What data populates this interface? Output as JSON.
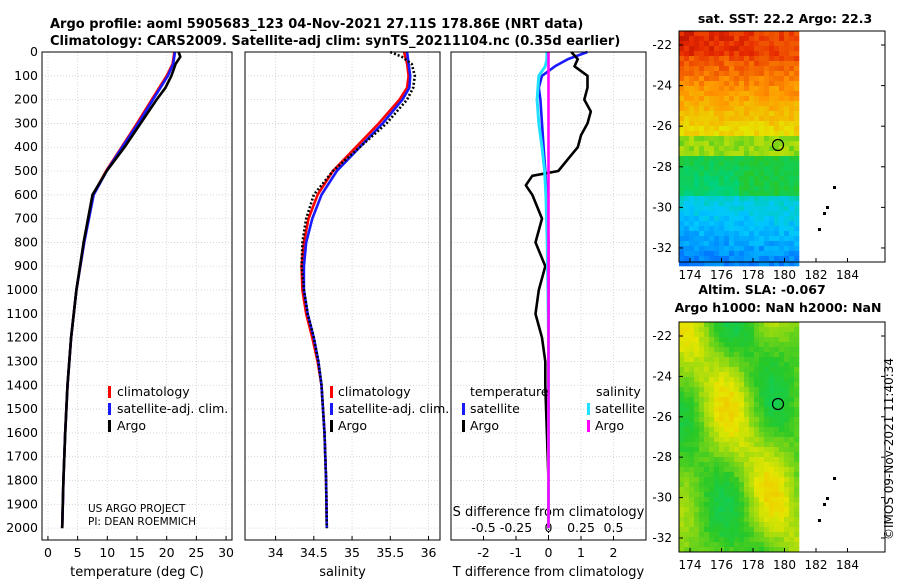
{
  "header": {
    "line1": "Argo profile: aoml 5905683_123 04-Nov-2021 27.11S 178.86E (NRT data)",
    "line2": "Climatology: CARS2009. Satellite-adj clim: synTS_20211104.nc (0.35d earlier)"
  },
  "watermark": "©IMOS 09-Nov-2021 11:40:34",
  "colors": {
    "climatology": "#ff0000",
    "satellite": "#1a1aff",
    "argo": "#000000",
    "sat_salinity": "#22e0ff",
    "argo_salinity": "#ff00ff"
  },
  "depth_ticks": [
    "0",
    "100",
    "200",
    "300",
    "400",
    "500",
    "600",
    "700",
    "800",
    "900",
    "1000",
    "1100",
    "1200",
    "1300",
    "1400",
    "1500",
    "1600",
    "1700",
    "1800",
    "1900",
    "2000"
  ],
  "project": {
    "line1": "US ARGO PROJECT",
    "line2": "PI: DEAN ROEMMICH"
  },
  "legend": {
    "clim": "climatology",
    "sat": "satellite-adj. clim.",
    "argo": "Argo"
  },
  "legend_diff": {
    "temp_title": "temperature",
    "sal_title": "salinity",
    "sat": "satellite",
    "argo": "Argo"
  },
  "chart_data": [
    {
      "type": "line",
      "name": "temperature",
      "xlabel": "temperature (deg C)",
      "ylabel": "depth",
      "xlim": [
        -1,
        31
      ],
      "ylim": [
        2050,
        0
      ],
      "xticks": [
        "0",
        "5",
        "10",
        "15",
        "20",
        "25",
        "30"
      ],
      "series": [
        {
          "name": "climatology",
          "depth": [
            0,
            50,
            100,
            200,
            300,
            400,
            500,
            600,
            800,
            1000,
            1200,
            1400,
            1600,
            1800,
            2000
          ],
          "values": [
            21.3,
            21.0,
            20.0,
            17.5,
            15.0,
            12.4,
            9.8,
            7.6,
            6.1,
            4.8,
            3.9,
            3.3,
            2.9,
            2.6,
            2.4
          ]
        },
        {
          "name": "satellite-adj. clim.",
          "depth": [
            0,
            50,
            100,
            200,
            300,
            400,
            500,
            600,
            800,
            1000,
            1200,
            1400,
            1600,
            1800,
            2000
          ],
          "values": [
            21.4,
            21.1,
            20.2,
            17.7,
            15.2,
            12.5,
            9.9,
            7.7,
            6.1,
            4.8,
            3.9,
            3.3,
            2.9,
            2.6,
            2.4
          ]
        },
        {
          "name": "Argo",
          "depth": [
            0,
            20,
            50,
            100,
            150,
            200,
            300,
            400,
            500,
            600,
            800,
            1000,
            1200,
            1400,
            1600,
            1800,
            2000
          ],
          "values": [
            22.0,
            22.3,
            21.5,
            20.8,
            19.8,
            18.3,
            15.6,
            12.9,
            9.9,
            7.5,
            6.0,
            4.8,
            3.9,
            3.3,
            2.9,
            2.6,
            2.4
          ]
        }
      ]
    },
    {
      "type": "line",
      "name": "salinity",
      "xlabel": "salinity",
      "ylabel": "depth",
      "xlim": [
        33.6,
        36.15
      ],
      "ylim": [
        2050,
        0
      ],
      "xticks": [
        "34",
        "34.5",
        "35",
        "35.5",
        "36"
      ],
      "series": [
        {
          "name": "climatology",
          "depth": [
            0,
            50,
            100,
            150,
            200,
            300,
            400,
            500,
            600,
            700,
            800,
            900,
            1000,
            1100,
            1200,
            1300,
            1400,
            1600,
            1800,
            2000
          ],
          "values": [
            35.68,
            35.72,
            35.74,
            35.72,
            35.62,
            35.35,
            35.05,
            34.75,
            34.55,
            34.43,
            34.37,
            34.34,
            34.35,
            34.4,
            34.48,
            34.55,
            34.6,
            34.64,
            34.66,
            34.67
          ]
        },
        {
          "name": "satellite-adj. clim.",
          "depth": [
            0,
            50,
            100,
            150,
            200,
            300,
            400,
            500,
            600,
            700,
            800,
            900,
            1000,
            1100,
            1200,
            1300,
            1400,
            1600,
            1800,
            2000
          ],
          "values": [
            35.72,
            35.74,
            35.76,
            35.75,
            35.66,
            35.4,
            35.1,
            34.8,
            34.6,
            34.48,
            34.4,
            34.37,
            34.37,
            34.42,
            34.5,
            34.56,
            34.6,
            34.64,
            34.66,
            34.67
          ]
        },
        {
          "name": "Argo",
          "depth": [
            0,
            20,
            50,
            100,
            150,
            200,
            300,
            400,
            500,
            600,
            700,
            800,
            900,
            1000,
            1100,
            1200,
            1300,
            1400,
            1600,
            1800,
            2000
          ],
          "values": [
            35.5,
            35.65,
            35.78,
            35.82,
            35.8,
            35.72,
            35.45,
            35.1,
            34.75,
            34.5,
            34.4,
            34.35,
            34.34,
            34.37,
            34.42,
            34.5,
            34.56,
            34.6,
            34.64,
            34.66,
            34.67
          ]
        }
      ]
    },
    {
      "type": "line",
      "name": "difference from climatology",
      "xlabel": "T difference from climatology",
      "x2label": "S difference from climatology",
      "xlim": [
        -3,
        3
      ],
      "ylim": [
        2050,
        0
      ],
      "xticks": [
        "-2",
        "-1",
        "0",
        "1",
        "2"
      ],
      "x2ticks": [
        "-0.5",
        "-0.25",
        "0",
        "0.25",
        "0.5"
      ],
      "series": [
        {
          "name": "temperature satellite",
          "depth": [
            0,
            30,
            60,
            100,
            150,
            200,
            300,
            400,
            500,
            600,
            800,
            1000,
            1200,
            1400,
            1600,
            1800,
            2000
          ],
          "values": [
            1.2,
            0.6,
            0.2,
            -0.2,
            -0.3,
            -0.25,
            -0.2,
            -0.15,
            -0.1,
            -0.05,
            0,
            0,
            0,
            0,
            0,
            0,
            0
          ]
        },
        {
          "name": "temperature Argo",
          "depth": [
            0,
            30,
            60,
            100,
            150,
            200,
            250,
            300,
            350,
            400,
            450,
            500,
            520,
            560,
            600,
            700,
            800,
            900,
            1000,
            1100,
            1200,
            1300,
            1400,
            1600,
            1800,
            2000
          ],
          "values": [
            0.7,
            0.9,
            0.8,
            1.2,
            1.2,
            1.1,
            1.3,
            1.2,
            1.0,
            0.9,
            0.6,
            0.3,
            -0.5,
            -0.7,
            -0.5,
            -0.2,
            -0.4,
            -0.1,
            -0.3,
            -0.4,
            -0.2,
            -0.1,
            -0.1,
            -0.05,
            0,
            0
          ]
        },
        {
          "name": "salinity satellite",
          "depth": [
            0,
            30,
            60,
            100,
            200,
            300,
            400,
            500,
            600,
            800,
            1000,
            1200,
            1400,
            1600,
            1800,
            2000
          ],
          "values": [
            -0.05,
            -0.05,
            -0.1,
            -0.3,
            -0.35,
            -0.3,
            -0.2,
            -0.12,
            -0.08,
            -0.04,
            -0.02,
            0,
            0,
            0,
            0,
            0
          ]
        },
        {
          "name": "salinity Argo",
          "depth": [
            0,
            2000
          ],
          "values": [
            0,
            0
          ]
        }
      ]
    }
  ],
  "map_top": {
    "title": "sat. SST: 22.2 Argo: 22.3",
    "yticks": [
      "-22",
      "-24",
      "-26",
      "-28",
      "-30",
      "-32"
    ],
    "xticks": [
      "174",
      "176",
      "178",
      "180",
      "182",
      "184"
    ]
  },
  "map_bottom": {
    "title1": "Altim. SLA: -0.067",
    "title2": "Argo h1000: NaN h2000: NaN",
    "yticks": [
      "-22",
      "-24",
      "-26",
      "-28",
      "-30",
      "-32"
    ],
    "xticks": [
      "174",
      "176",
      "178",
      "180",
      "182",
      "184"
    ]
  }
}
